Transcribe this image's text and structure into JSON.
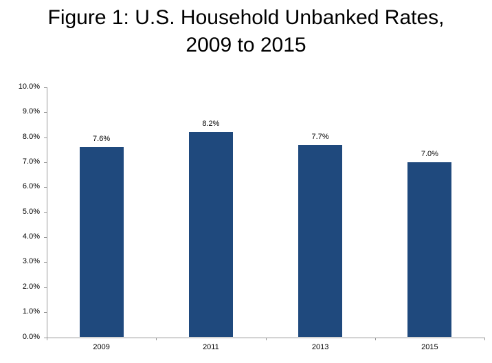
{
  "title": {
    "line1": "Figure 1: U.S. Household Unbanked Rates,",
    "line2": "2009 to 2015"
  },
  "chart_data": {
    "type": "bar",
    "title": "Figure 1: U.S. Household Unbanked Rates, 2009 to 2015",
    "categories": [
      "2009",
      "2011",
      "2013",
      "2015"
    ],
    "values": [
      7.6,
      8.2,
      7.7,
      7.0
    ],
    "data_labels": [
      "7.6%",
      "8.2%",
      "7.7%",
      "7.0%"
    ],
    "xlabel": "",
    "ylabel": "",
    "ylim": [
      0,
      10
    ],
    "ytick_step": 1,
    "ytick_labels": [
      "0.0%",
      "1.0%",
      "2.0%",
      "3.0%",
      "4.0%",
      "5.0%",
      "6.0%",
      "7.0%",
      "8.0%",
      "9.0%",
      "10.0%"
    ],
    "gridlines": false,
    "legend_position": "none",
    "colors": {
      "bar": "#1F497D",
      "axis": "#969696",
      "text": "#000000",
      "background": "#FFFFFF"
    }
  }
}
